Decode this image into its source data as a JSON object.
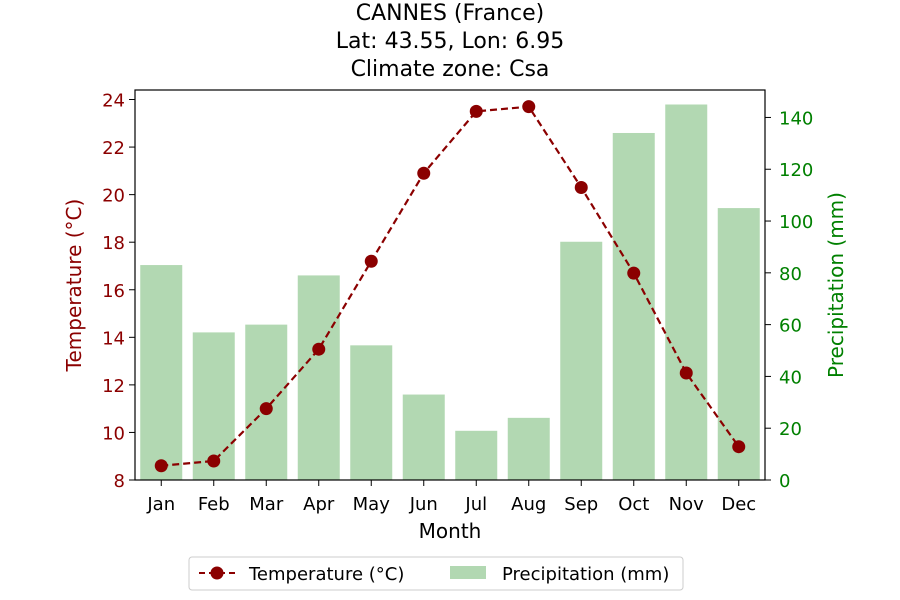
{
  "chart_data": {
    "type": "bar",
    "title": [
      "CANNES (France)",
      "Lat: 43.55, Lon: 6.95",
      "Climate zone: Csa"
    ],
    "xlabel": "Month",
    "categories": [
      "Jan",
      "Feb",
      "Mar",
      "Apr",
      "May",
      "Jun",
      "Jul",
      "Aug",
      "Sep",
      "Oct",
      "Nov",
      "Dec"
    ],
    "temperature": {
      "name": "Temperature (°C)",
      "axis_label": "Temperature (°C)",
      "type": "line",
      "values": [
        8.6,
        8.8,
        11.0,
        13.5,
        17.2,
        20.9,
        23.5,
        23.7,
        20.3,
        16.7,
        12.5,
        9.4
      ],
      "ylim": [
        8,
        24.4
      ],
      "ticks": [
        8,
        10,
        12,
        14,
        16,
        18,
        20,
        22,
        24
      ],
      "color": "#8b0000"
    },
    "precipitation": {
      "name": "Precipitation (mm)",
      "axis_label": "Precipitation (mm)",
      "type": "bar",
      "values": [
        83,
        57,
        60,
        79,
        52,
        33,
        19,
        24,
        92,
        134,
        145,
        105
      ],
      "ylim": [
        0,
        150.6
      ],
      "ticks": [
        0,
        20,
        40,
        60,
        80,
        100,
        120,
        140
      ],
      "color": "#b2d8b2",
      "axis_color": "#008000"
    },
    "legend_position": "bottom-center",
    "grid": false
  }
}
